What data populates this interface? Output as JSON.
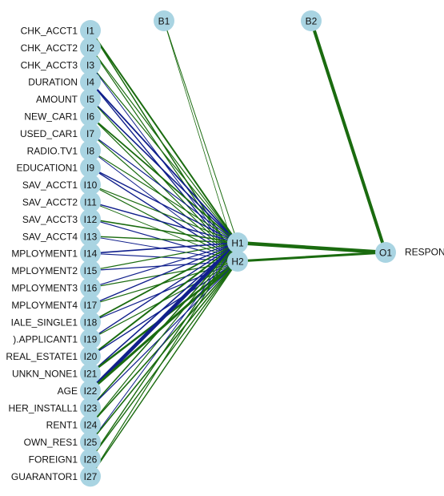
{
  "network": {
    "inputs": [
      {
        "id": "I1",
        "name": "CHK_ACCT1"
      },
      {
        "id": "I2",
        "name": "CHK_ACCT2"
      },
      {
        "id": "I3",
        "name": "CHK_ACCT3"
      },
      {
        "id": "I4",
        "name": "DURATION"
      },
      {
        "id": "I5",
        "name": "AMOUNT"
      },
      {
        "id": "I6",
        "name": "NEW_CAR1"
      },
      {
        "id": "I7",
        "name": "USED_CAR1"
      },
      {
        "id": "I8",
        "name": "RADIO.TV1"
      },
      {
        "id": "I9",
        "name": "EDUCATION1"
      },
      {
        "id": "I10",
        "name": "SAV_ACCT1"
      },
      {
        "id": "I11",
        "name": "SAV_ACCT2"
      },
      {
        "id": "I12",
        "name": "SAV_ACCT3"
      },
      {
        "id": "I13",
        "name": "SAV_ACCT4"
      },
      {
        "id": "I14",
        "name": "MPLOYMENT1"
      },
      {
        "id": "I15",
        "name": "MPLOYMENT2"
      },
      {
        "id": "I16",
        "name": "MPLOYMENT3"
      },
      {
        "id": "I17",
        "name": "MPLOYMENT4"
      },
      {
        "id": "I18",
        "name": "IALE_SINGLE1"
      },
      {
        "id": "I19",
        "name": ").APPLICANT1"
      },
      {
        "id": "I20",
        "name": "REAL_ESTATE1"
      },
      {
        "id": "I21",
        "name": "UNKN_NONE1"
      },
      {
        "id": "I22",
        "name": "AGE"
      },
      {
        "id": "I23",
        "name": "HER_INSTALL1"
      },
      {
        "id": "I24",
        "name": "RENT1"
      },
      {
        "id": "I25",
        "name": "OWN_RES1"
      },
      {
        "id": "I26",
        "name": "FOREIGN1"
      },
      {
        "id": "I27",
        "name": "GUARANTOR1"
      }
    ],
    "bias_nodes": [
      "B1",
      "B2"
    ],
    "hidden_nodes": [
      "H1",
      "H2"
    ],
    "output_node": "O1",
    "output_name": "RESPON",
    "colors": {
      "node_fill": "#a9d4e2",
      "positive_weight": "#1a6b0f",
      "negative_weight": "#101f8c",
      "label_text": "#111111"
    },
    "weights": [
      {
        "from": "I1",
        "to": "H1",
        "sign": "positive",
        "strength": 2
      },
      {
        "from": "I1",
        "to": "H2",
        "sign": "positive",
        "strength": 1.5
      },
      {
        "from": "I2",
        "to": "H1",
        "sign": "positive",
        "strength": 1.2
      },
      {
        "from": "I2",
        "to": "H2",
        "sign": "positive",
        "strength": 1.2
      },
      {
        "from": "I3",
        "to": "H1",
        "sign": "positive",
        "strength": 1.2
      },
      {
        "from": "I3",
        "to": "H2",
        "sign": "negative",
        "strength": 1.0
      },
      {
        "from": "I4",
        "to": "H1",
        "sign": "negative",
        "strength": 1.8
      },
      {
        "from": "I4",
        "to": "H2",
        "sign": "negative",
        "strength": 1.4
      },
      {
        "from": "I5",
        "to": "H1",
        "sign": "negative",
        "strength": 1.6
      },
      {
        "from": "I5",
        "to": "H2",
        "sign": "positive",
        "strength": 1.2
      },
      {
        "from": "I6",
        "to": "H1",
        "sign": "positive",
        "strength": 1.8
      },
      {
        "from": "I6",
        "to": "H2",
        "sign": "positive",
        "strength": 1.2
      },
      {
        "from": "I7",
        "to": "H1",
        "sign": "negative",
        "strength": 1.2
      },
      {
        "from": "I7",
        "to": "H2",
        "sign": "positive",
        "strength": 1.2
      },
      {
        "from": "I8",
        "to": "H1",
        "sign": "positive",
        "strength": 1.2
      },
      {
        "from": "I8",
        "to": "H2",
        "sign": "negative",
        "strength": 1.0
      },
      {
        "from": "I9",
        "to": "H1",
        "sign": "negative",
        "strength": 1.4
      },
      {
        "from": "I9",
        "to": "H2",
        "sign": "negative",
        "strength": 1.4
      },
      {
        "from": "I10",
        "to": "H1",
        "sign": "positive",
        "strength": 1.2
      },
      {
        "from": "I10",
        "to": "H2",
        "sign": "positive",
        "strength": 1.2
      },
      {
        "from": "I11",
        "to": "H1",
        "sign": "negative",
        "strength": 1.4
      },
      {
        "from": "I11",
        "to": "H2",
        "sign": "positive",
        "strength": 1.0
      },
      {
        "from": "I12",
        "to": "H1",
        "sign": "positive",
        "strength": 1.6
      },
      {
        "from": "I12",
        "to": "H2",
        "sign": "negative",
        "strength": 1.2
      },
      {
        "from": "I13",
        "to": "H1",
        "sign": "positive",
        "strength": 1.4
      },
      {
        "from": "I13",
        "to": "H2",
        "sign": "negative",
        "strength": 1.0
      },
      {
        "from": "I14",
        "to": "H1",
        "sign": "negative",
        "strength": 1.6
      },
      {
        "from": "I14",
        "to": "H2",
        "sign": "negative",
        "strength": 1.2
      },
      {
        "from": "I15",
        "to": "H1",
        "sign": "positive",
        "strength": 1.2
      },
      {
        "from": "I15",
        "to": "H2",
        "sign": "negative",
        "strength": 1.2
      },
      {
        "from": "I16",
        "to": "H1",
        "sign": "negative",
        "strength": 1.2
      },
      {
        "from": "I16",
        "to": "H2",
        "sign": "positive",
        "strength": 1.2
      },
      {
        "from": "I17",
        "to": "H1",
        "sign": "negative",
        "strength": 1.4
      },
      {
        "from": "I17",
        "to": "H2",
        "sign": "positive",
        "strength": 1.2
      },
      {
        "from": "I18",
        "to": "H1",
        "sign": "positive",
        "strength": 1.8
      },
      {
        "from": "I18",
        "to": "H2",
        "sign": "negative",
        "strength": 1.2
      },
      {
        "from": "I19",
        "to": "H1",
        "sign": "negative",
        "strength": 1.4
      },
      {
        "from": "I19",
        "to": "H2",
        "sign": "positive",
        "strength": 1.2
      },
      {
        "from": "I20",
        "to": "H1",
        "sign": "positive",
        "strength": 2.0
      },
      {
        "from": "I20",
        "to": "H2",
        "sign": "negative",
        "strength": 1.4
      },
      {
        "from": "I21",
        "to": "H1",
        "sign": "negative",
        "strength": 1.6
      },
      {
        "from": "I21",
        "to": "H2",
        "sign": "positive",
        "strength": 2.5
      },
      {
        "from": "I22",
        "to": "H1",
        "sign": "negative",
        "strength": 4.5
      },
      {
        "from": "I22",
        "to": "H2",
        "sign": "positive",
        "strength": 3.0
      },
      {
        "from": "I23",
        "to": "H1",
        "sign": "positive",
        "strength": 1.6
      },
      {
        "from": "I23",
        "to": "H2",
        "sign": "negative",
        "strength": 1.2
      },
      {
        "from": "I24",
        "to": "H1",
        "sign": "positive",
        "strength": 1.2
      },
      {
        "from": "I24",
        "to": "H2",
        "sign": "positive",
        "strength": 1.6
      },
      {
        "from": "I25",
        "to": "H1",
        "sign": "negative",
        "strength": 1.0
      },
      {
        "from": "I25",
        "to": "H2",
        "sign": "positive",
        "strength": 1.6
      },
      {
        "from": "I26",
        "to": "H1",
        "sign": "positive",
        "strength": 1.4
      },
      {
        "from": "I26",
        "to": "H2",
        "sign": "positive",
        "strength": 1.4
      },
      {
        "from": "I27",
        "to": "H1",
        "sign": "positive",
        "strength": 1.2
      },
      {
        "from": "I27",
        "to": "H2",
        "sign": "positive",
        "strength": 1.4
      },
      {
        "from": "B1",
        "to": "H1",
        "sign": "positive",
        "strength": 1.0
      },
      {
        "from": "B1",
        "to": "H2",
        "sign": "positive",
        "strength": 0.8
      },
      {
        "from": "H1",
        "to": "O1",
        "sign": "positive",
        "strength": 4.5
      },
      {
        "from": "H2",
        "to": "O1",
        "sign": "positive",
        "strength": 3.0
      },
      {
        "from": "B2",
        "to": "O1",
        "sign": "positive",
        "strength": 4.0
      }
    ]
  }
}
